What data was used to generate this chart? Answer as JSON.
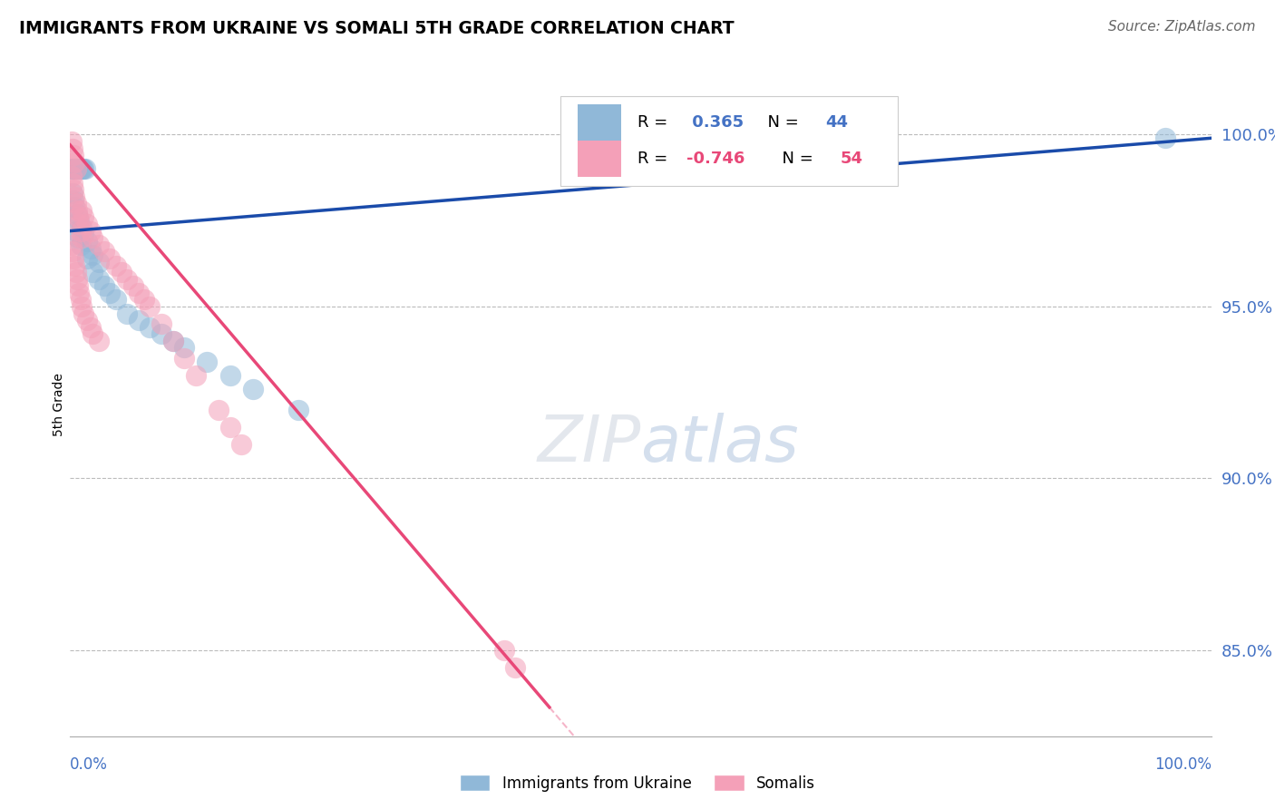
{
  "title": "IMMIGRANTS FROM UKRAINE VS SOMALI 5TH GRADE CORRELATION CHART",
  "source": "Source: ZipAtlas.com",
  "ylabel": "5th Grade",
  "ukraine_R": 0.365,
  "ukraine_N": 44,
  "somali_R": -0.746,
  "somali_N": 54,
  "ukraine_color": "#90b8d8",
  "somali_color": "#f4a0b8",
  "ukraine_line_color": "#1a4baa",
  "somali_line_color": "#e84878",
  "right_axis_color": "#4472c4",
  "ytick_values": [
    0.85,
    0.9,
    0.95,
    1.0
  ],
  "ytick_labels": [
    "85.0%",
    "90.0%",
    "95.0%",
    "100.0%"
  ],
  "xlim": [
    0.0,
    1.0
  ],
  "ylim": [
    0.825,
    1.018
  ],
  "ukraine_scatter_x": [
    0.001,
    0.002,
    0.003,
    0.004,
    0.005,
    0.006,
    0.007,
    0.008,
    0.009,
    0.01,
    0.011,
    0.012,
    0.013,
    0.002,
    0.003,
    0.004,
    0.006,
    0.008,
    0.01,
    0.012,
    0.015,
    0.018,
    0.02,
    0.025,
    0.005,
    0.007,
    0.009,
    0.015,
    0.02,
    0.025,
    0.03,
    0.035,
    0.04,
    0.05,
    0.06,
    0.07,
    0.08,
    0.09,
    0.1,
    0.12,
    0.14,
    0.16,
    0.2,
    0.96
  ],
  "ukraine_scatter_y": [
    0.99,
    0.99,
    0.99,
    0.99,
    0.99,
    0.99,
    0.99,
    0.99,
    0.99,
    0.99,
    0.99,
    0.99,
    0.99,
    0.983,
    0.981,
    0.979,
    0.977,
    0.975,
    0.973,
    0.971,
    0.969,
    0.967,
    0.965,
    0.963,
    0.972,
    0.97,
    0.968,
    0.964,
    0.96,
    0.958,
    0.956,
    0.954,
    0.952,
    0.948,
    0.946,
    0.944,
    0.942,
    0.94,
    0.938,
    0.934,
    0.93,
    0.926,
    0.92,
    0.999
  ],
  "somali_scatter_x": [
    0.001,
    0.002,
    0.003,
    0.004,
    0.005,
    0.001,
    0.002,
    0.003,
    0.004,
    0.005,
    0.006,
    0.007,
    0.008,
    0.009,
    0.01,
    0.001,
    0.002,
    0.003,
    0.004,
    0.005,
    0.006,
    0.007,
    0.008,
    0.009,
    0.01,
    0.012,
    0.015,
    0.018,
    0.02,
    0.025,
    0.01,
    0.012,
    0.015,
    0.018,
    0.02,
    0.025,
    0.03,
    0.035,
    0.04,
    0.045,
    0.05,
    0.055,
    0.06,
    0.065,
    0.07,
    0.08,
    0.09,
    0.1,
    0.11,
    0.13,
    0.14,
    0.15,
    0.38,
    0.39
  ],
  "somali_scatter_y": [
    0.998,
    0.996,
    0.994,
    0.992,
    0.99,
    0.988,
    0.986,
    0.984,
    0.982,
    0.98,
    0.978,
    0.976,
    0.974,
    0.972,
    0.97,
    0.968,
    0.966,
    0.964,
    0.962,
    0.96,
    0.958,
    0.956,
    0.954,
    0.952,
    0.95,
    0.948,
    0.946,
    0.944,
    0.942,
    0.94,
    0.978,
    0.976,
    0.974,
    0.972,
    0.97,
    0.968,
    0.966,
    0.964,
    0.962,
    0.96,
    0.958,
    0.956,
    0.954,
    0.952,
    0.95,
    0.945,
    0.94,
    0.935,
    0.93,
    0.92,
    0.915,
    0.91,
    0.85,
    0.845
  ]
}
